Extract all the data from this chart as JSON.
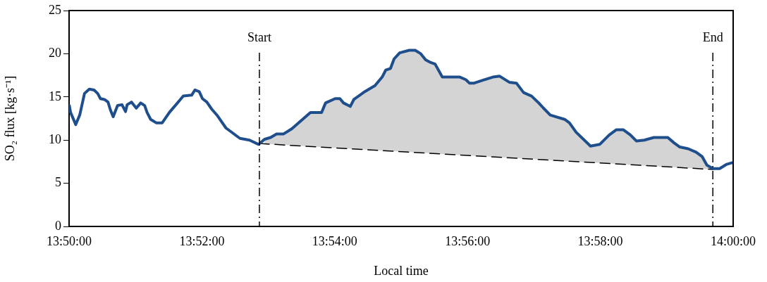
{
  "chart_data": {
    "type": "line",
    "xlabel": "Local time",
    "ylabel": "SO₂ flux [kg·s⁻¹]",
    "xlim": [
      13.83333,
      14
    ],
    "xticks": [
      {
        "value": 13.83333,
        "label": "13:50:00"
      },
      {
        "value": 13.86667,
        "label": "13:52:00"
      },
      {
        "value": 13.9,
        "label": "13:54:00"
      },
      {
        "value": 13.93333,
        "label": "13:56:00"
      },
      {
        "value": 13.96667,
        "label": "13:58:00"
      },
      {
        "value": 14,
        "label": "14:00:00"
      }
    ],
    "ylim": [
      0,
      25
    ],
    "yticks": [
      0,
      5,
      10,
      15,
      20,
      25
    ],
    "grid": false,
    "legend": false,
    "marker": "none",
    "series": [
      {
        "color": "#1f4e8c",
        "line_style": "solid",
        "x": [
          13.8334,
          13.8337,
          13.835,
          13.836,
          13.8372,
          13.8384,
          13.8396,
          13.8405,
          13.8412,
          13.8422,
          13.8431,
          13.8437,
          13.8444,
          13.8455,
          13.8466,
          13.8475,
          13.8479,
          13.849,
          13.8502,
          13.8513,
          13.8523,
          13.8529,
          13.8538,
          13.8552,
          13.8567,
          13.8585,
          13.862,
          13.8641,
          13.8649,
          13.866,
          13.8668,
          13.8679,
          13.8691,
          13.8706,
          13.8727,
          13.8762,
          13.8786,
          13.8809,
          13.8824,
          13.8839,
          13.8854,
          13.8871,
          13.8892,
          13.8939,
          13.8967,
          13.8977,
          13.9001,
          13.9013,
          13.9022,
          13.9039,
          13.9048,
          13.9075,
          13.9101,
          13.9119,
          13.9128,
          13.914,
          13.9149,
          13.9163,
          13.9187,
          13.9202,
          13.9216,
          13.9228,
          13.924,
          13.9252,
          13.927,
          13.9314,
          13.9329,
          13.9338,
          13.935,
          13.937,
          13.9397,
          13.9414,
          13.9438,
          13.9456,
          13.9474,
          13.9494,
          13.9512,
          13.9524,
          13.9541,
          13.9577,
          13.9589,
          13.9606,
          13.9642,
          13.9665,
          13.9689,
          13.9707,
          13.9724,
          13.9742,
          13.9757,
          13.9777,
          13.9801,
          13.9836,
          13.9851,
          13.9866,
          13.9887,
          13.9907,
          13.9922,
          13.9934,
          13.9949,
          13.9966,
          13.9984,
          13.9999
        ],
        "lower": [
          null,
          null,
          null,
          null,
          null,
          null,
          null,
          null,
          null,
          null,
          null,
          null,
          null,
          null,
          null,
          null,
          null,
          null,
          null,
          null,
          null,
          null,
          null,
          null,
          null,
          null,
          null,
          null,
          null,
          null,
          null,
          null,
          null,
          null,
          null,
          null,
          null,
          null,
          9.57,
          9.53,
          9.49,
          9.44,
          9.39,
          9.26,
          9.19,
          9.16,
          9.1,
          9.07,
          9.04,
          9.0,
          8.98,
          8.9,
          8.84,
          8.79,
          8.76,
          8.73,
          8.71,
          8.67,
          8.61,
          8.57,
          8.53,
          8.5,
          8.47,
          8.44,
          8.39,
          8.27,
          8.23,
          8.21,
          8.18,
          8.13,
          8.06,
          8.01,
          7.95,
          7.9,
          7.85,
          7.8,
          7.75,
          7.72,
          7.68,
          7.58,
          7.55,
          7.5,
          7.41,
          7.35,
          7.29,
          7.24,
          7.19,
          7.15,
          7.11,
          7.05,
          6.99,
          6.9,
          6.86,
          6.82,
          6.76,
          6.71,
          6.67,
          6.64,
          6.6,
          null,
          null,
          null
        ],
        "upper": [
          null,
          null,
          null,
          null,
          null,
          null,
          null,
          null,
          null,
          null,
          null,
          null,
          null,
          null,
          null,
          null,
          null,
          null,
          null,
          null,
          null,
          null,
          null,
          null,
          null,
          null,
          null,
          null,
          null,
          null,
          null,
          null,
          null,
          null,
          null,
          null,
          null,
          null,
          10.1,
          10.3,
          10.7,
          10.7,
          11.3,
          13.2,
          13.2,
          14.3,
          14.8,
          14.8,
          14.3,
          13.9,
          14.7,
          15.6,
          16.3,
          17.3,
          18.1,
          18.3,
          19.4,
          20.1,
          20.4,
          20.4,
          20.0,
          19.3,
          19.0,
          18.8,
          17.3,
          17.3,
          17.0,
          16.6,
          16.6,
          16.9,
          17.3,
          17.4,
          16.7,
          16.6,
          15.5,
          15.1,
          14.3,
          13.7,
          12.9,
          12.4,
          12.0,
          10.9,
          9.3,
          9.5,
          10.6,
          11.2,
          11.2,
          10.6,
          9.9,
          10.0,
          10.3,
          10.3,
          9.7,
          9.2,
          9.0,
          8.6,
          8.1,
          7.1,
          6.7,
          null,
          null,
          null
        ],
        "values": [
          14.0,
          13.2,
          11.8,
          12.9,
          15.4,
          15.9,
          15.8,
          15.4,
          14.8,
          14.7,
          14.4,
          13.5,
          12.7,
          14.0,
          14.1,
          13.3,
          14.1,
          14.4,
          13.7,
          14.3,
          14.0,
          13.2,
          12.4,
          12.0,
          12.0,
          13.2,
          15.1,
          15.2,
          15.8,
          15.6,
          14.8,
          14.4,
          13.6,
          12.8,
          11.4,
          10.2,
          10.0,
          9.5,
          10.1,
          10.3,
          10.7,
          10.7,
          11.3,
          13.2,
          13.2,
          14.3,
          14.8,
          14.8,
          14.3,
          13.9,
          14.7,
          15.6,
          16.3,
          17.3,
          18.1,
          18.3,
          19.4,
          20.1,
          20.4,
          20.4,
          20.0,
          19.3,
          19.0,
          18.8,
          17.3,
          17.3,
          17.0,
          16.6,
          16.6,
          16.9,
          17.3,
          17.4,
          16.7,
          16.6,
          15.5,
          15.1,
          14.3,
          13.7,
          12.9,
          12.4,
          12.0,
          10.9,
          9.3,
          9.5,
          10.6,
          11.2,
          11.2,
          10.6,
          9.9,
          10.0,
          10.3,
          10.3,
          9.7,
          9.2,
          9.0,
          8.6,
          8.1,
          7.1,
          6.7,
          6.7,
          7.2,
          7.4
        ]
      },
      {
        "type": "line",
        "color": "#000000",
        "line_style": "dashed",
        "x": [
          13.8811,
          13.9949
        ],
        "values": [
          9.6,
          6.6
        ]
      }
    ],
    "ref_lines": [
      {
        "axis": "x",
        "value": 13.8811,
        "label": "Start",
        "line_style": "dashed",
        "color": "#000000"
      },
      {
        "axis": "x",
        "value": 13.9949,
        "label": "End",
        "line_style": "dashed",
        "color": "#000000"
      }
    ]
  }
}
